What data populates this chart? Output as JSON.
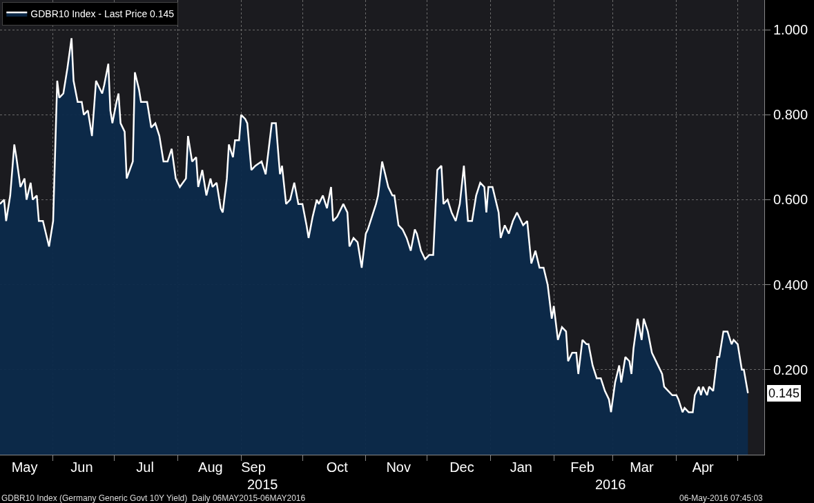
{
  "chart_data": {
    "type": "area",
    "x": [
      "2015-05-06",
      "2015-05-08",
      "2015-05-09",
      "2015-05-11",
      "2015-05-13",
      "2015-05-14",
      "2015-05-16",
      "2015-05-18",
      "2015-05-19",
      "2015-05-21",
      "2015-05-22",
      "2015-05-24",
      "2015-05-25",
      "2015-05-27",
      "2015-05-28",
      "2015-05-30",
      "2015-06-01",
      "2015-06-03",
      "2015-06-04",
      "2015-06-06",
      "2015-06-08",
      "2015-06-10",
      "2015-06-11",
      "2015-06-13",
      "2015-06-15",
      "2015-06-16",
      "2015-06-18",
      "2015-06-20",
      "2015-06-22",
      "2015-06-23",
      "2015-06-25",
      "2015-06-26",
      "2015-06-28",
      "2015-06-29",
      "2015-06-30",
      "2015-07-02",
      "2015-07-03",
      "2015-07-04",
      "2015-07-06",
      "2015-07-07",
      "2015-07-10",
      "2015-07-11",
      "2015-07-13",
      "2015-07-14",
      "2015-07-17",
      "2015-07-19",
      "2015-07-21",
      "2015-07-23",
      "2015-07-25",
      "2015-07-27",
      "2015-07-29",
      "2015-07-31",
      "2015-08-02",
      "2015-08-05",
      "2015-08-06",
      "2015-08-08",
      "2015-08-10",
      "2015-08-11",
      "2015-08-13",
      "2015-08-15",
      "2015-08-17",
      "2015-08-18",
      "2015-08-20",
      "2015-08-22",
      "2015-08-23",
      "2015-08-25",
      "2015-08-26",
      "2015-08-28",
      "2015-08-29",
      "2015-08-31",
      "2015-09-01",
      "2015-09-03",
      "2015-09-04",
      "2015-09-06",
      "2015-09-08",
      "2015-09-11",
      "2015-09-13",
      "2015-09-16",
      "2015-09-18",
      "2015-09-20",
      "2015-09-21",
      "2015-09-23",
      "2015-09-25",
      "2015-09-27",
      "2015-09-29",
      "2015-10-01",
      "2015-10-03",
      "2015-10-04",
      "2015-10-06",
      "2015-10-08",
      "2015-10-09",
      "2015-10-11",
      "2015-10-13",
      "2015-10-15",
      "2015-10-16",
      "2015-10-18",
      "2015-10-21",
      "2015-10-23",
      "2015-10-24",
      "2015-10-26",
      "2015-10-28",
      "2015-10-30",
      "2015-11-01",
      "2015-11-02",
      "2015-11-04",
      "2015-11-06",
      "2015-11-07",
      "2015-11-09",
      "2015-11-12",
      "2015-11-14",
      "2015-11-15",
      "2015-11-17",
      "2015-11-19",
      "2015-11-21",
      "2015-11-23",
      "2015-11-25",
      "2015-11-26",
      "2015-11-28",
      "2015-11-30",
      "2015-12-02",
      "2015-12-04",
      "2015-12-06",
      "2015-12-08",
      "2015-12-09",
      "2015-12-11",
      "2015-12-13",
      "2015-12-15",
      "2015-12-17",
      "2015-12-19",
      "2015-12-21",
      "2015-12-23",
      "2015-12-25",
      "2015-12-27",
      "2015-12-29",
      "2015-12-30",
      "2015-12-31",
      "2016-01-02",
      "2016-01-05",
      "2016-01-06",
      "2016-01-08",
      "2016-01-10",
      "2016-01-12",
      "2016-01-14",
      "2016-01-16",
      "2016-01-17",
      "2016-01-19",
      "2016-01-21",
      "2016-01-23",
      "2016-01-25",
      "2016-01-27",
      "2016-01-29",
      "2016-01-31",
      "2016-02-01",
      "2016-02-03",
      "2016-02-05",
      "2016-02-07",
      "2016-02-08",
      "2016-02-10",
      "2016-02-12",
      "2016-02-13",
      "2016-02-15",
      "2016-02-17",
      "2016-02-18",
      "2016-02-20",
      "2016-02-22",
      "2016-02-24",
      "2016-02-26",
      "2016-02-28",
      "2016-02-29",
      "2016-03-02",
      "2016-03-04",
      "2016-03-05",
      "2016-03-07",
      "2016-03-09",
      "2016-03-10",
      "2016-03-11",
      "2016-03-13",
      "2016-03-15",
      "2016-03-16",
      "2016-03-18",
      "2016-03-20",
      "2016-03-21",
      "2016-03-23",
      "2016-03-25",
      "2016-03-26",
      "2016-03-28",
      "2016-03-30",
      "2016-04-01",
      "2016-04-02",
      "2016-04-04",
      "2016-04-05",
      "2016-04-07",
      "2016-04-09",
      "2016-04-10",
      "2016-04-12",
      "2016-04-13",
      "2016-04-14",
      "2016-04-16",
      "2016-04-17",
      "2016-04-19",
      "2016-04-21",
      "2016-04-22",
      "2016-04-24",
      "2016-04-26",
      "2016-04-28",
      "2016-04-29",
      "2016-05-01",
      "2016-05-03",
      "2016-05-04",
      "2016-05-06"
    ],
    "series": [
      {
        "name": "GDBR10 Index - Last Price 0.145",
        "color": "#ffffff",
        "values": [
          0.59,
          0.6,
          0.55,
          0.61,
          0.73,
          0.7,
          0.63,
          0.65,
          0.6,
          0.64,
          0.6,
          0.61,
          0.55,
          0.55,
          0.53,
          0.49,
          0.55,
          0.88,
          0.84,
          0.85,
          0.91,
          0.98,
          0.88,
          0.83,
          0.83,
          0.8,
          0.81,
          0.75,
          0.88,
          0.87,
          0.85,
          0.87,
          0.92,
          0.81,
          0.78,
          0.83,
          0.85,
          0.78,
          0.76,
          0.65,
          0.69,
          0.9,
          0.86,
          0.83,
          0.83,
          0.77,
          0.78,
          0.75,
          0.69,
          0.69,
          0.72,
          0.65,
          0.63,
          0.65,
          0.75,
          0.69,
          0.7,
          0.63,
          0.67,
          0.61,
          0.65,
          0.63,
          0.64,
          0.58,
          0.57,
          0.65,
          0.73,
          0.7,
          0.74,
          0.74,
          0.8,
          0.79,
          0.78,
          0.67,
          0.68,
          0.69,
          0.66,
          0.78,
          0.78,
          0.66,
          0.68,
          0.59,
          0.6,
          0.64,
          0.59,
          0.59,
          0.54,
          0.51,
          0.56,
          0.6,
          0.59,
          0.61,
          0.58,
          0.63,
          0.55,
          0.56,
          0.59,
          0.57,
          0.49,
          0.51,
          0.5,
          0.44,
          0.52,
          0.53,
          0.56,
          0.59,
          0.61,
          0.69,
          0.63,
          0.61,
          0.61,
          0.54,
          0.53,
          0.51,
          0.48,
          0.53,
          0.52,
          0.48,
          0.46,
          0.47,
          0.47,
          0.67,
          0.68,
          0.59,
          0.6,
          0.57,
          0.55,
          0.59,
          0.68,
          0.55,
          0.55,
          0.61,
          0.64,
          0.63,
          0.57,
          0.63,
          0.63,
          0.57,
          0.51,
          0.54,
          0.52,
          0.55,
          0.57,
          0.55,
          0.54,
          0.55,
          0.45,
          0.48,
          0.44,
          0.44,
          0.4,
          0.32,
          0.35,
          0.27,
          0.3,
          0.29,
          0.22,
          0.24,
          0.24,
          0.19,
          0.27,
          0.26,
          0.26,
          0.21,
          0.18,
          0.18,
          0.15,
          0.13,
          0.1,
          0.17,
          0.21,
          0.17,
          0.23,
          0.22,
          0.19,
          0.25,
          0.32,
          0.27,
          0.32,
          0.29,
          0.24,
          0.23,
          0.21,
          0.19,
          0.16,
          0.15,
          0.14,
          0.14,
          0.13,
          0.1,
          0.11,
          0.1,
          0.1,
          0.14,
          0.16,
          0.14,
          0.16,
          0.14,
          0.16,
          0.15,
          0.23,
          0.23,
          0.29,
          0.29,
          0.26,
          0.27,
          0.26,
          0.2,
          0.2,
          0.145
        ]
      }
    ],
    "xlim": [
      "2015-05-06",
      "2016-05-14"
    ],
    "xticks": [
      {
        "value": "2015-06-01",
        "label": null
      },
      {
        "value": "2015-07-01",
        "label": null
      },
      {
        "value": "2015-08-01",
        "label": null
      },
      {
        "value": "2015-09-01",
        "label": null
      },
      {
        "value": "2015-10-01",
        "label": null
      },
      {
        "value": "2015-11-01",
        "label": null
      },
      {
        "value": "2015-12-01",
        "label": null
      },
      {
        "value": "2016-01-01",
        "label": null
      },
      {
        "value": "2016-02-01",
        "label": null
      },
      {
        "value": "2016-03-01",
        "label": null
      },
      {
        "value": "2016-04-01",
        "label": null
      },
      {
        "value": "2016-05-01",
        "label": null
      },
      {
        "value": "2015-05-18",
        "label": "May"
      },
      {
        "value": "2015-06-15",
        "label": "Jun"
      },
      {
        "value": "2015-07-16",
        "label": "Jul"
      },
      {
        "value": "2015-08-17",
        "label": "Aug"
      },
      {
        "value": "2015-09-07",
        "label": "Sep"
      },
      {
        "value": "2015-10-18",
        "label": "Oct"
      },
      {
        "value": "2015-11-17",
        "label": "Nov"
      },
      {
        "value": "2015-12-18",
        "label": "Dec"
      },
      {
        "value": "2016-01-16",
        "label": "Jan"
      },
      {
        "value": "2016-02-15",
        "label": "Feb"
      },
      {
        "value": "2016-03-15",
        "label": "Mar"
      },
      {
        "value": "2016-04-14",
        "label": "Apr"
      }
    ],
    "ylim": [
      0,
      1.07
    ],
    "yticks": [
      {
        "value": 0.2,
        "label": "0.200"
      },
      {
        "value": 0.4,
        "label": "0.400"
      },
      {
        "value": 0.6,
        "label": "0.600"
      },
      {
        "value": 0.8,
        "label": "0.800"
      },
      {
        "value": 1.0,
        "label": "1.000"
      }
    ],
    "grid": true,
    "legend": "top left",
    "annotations": [
      "2015",
      "2016",
      "0.145",
      "GDBR10 Index (Germany Generic Govt 10Y Yield)  Daily 06MAY2015-06MAY2016",
      "06-May-2016 07:45:03"
    ]
  }
}
